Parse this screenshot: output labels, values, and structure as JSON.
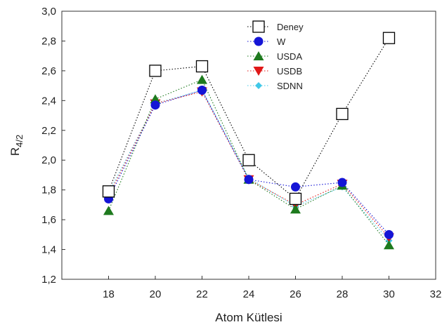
{
  "chart_data": {
    "type": "line",
    "title": "",
    "xlabel": "Atom Kütlesi",
    "ylabel_main": "R",
    "ylabel_sub": "4/2",
    "xlim": [
      16,
      32
    ],
    "ylim": [
      1.2,
      3.0
    ],
    "xticks": [
      18,
      20,
      22,
      24,
      26,
      28,
      30,
      32
    ],
    "yticks": [
      1.2,
      1.4,
      1.6,
      1.8,
      2.0,
      2.2,
      2.4,
      2.6,
      2.8,
      3.0
    ],
    "decimal_separator": ",",
    "grid": false,
    "legend_position": "top-right",
    "x": [
      18,
      20,
      22,
      24,
      26,
      28,
      30
    ],
    "series": [
      {
        "name": "Deney",
        "marker": "square-open",
        "color": "#000000",
        "values": [
          1.79,
          2.6,
          2.63,
          2.0,
          1.74,
          2.31,
          2.82
        ]
      },
      {
        "name": "W",
        "marker": "circle",
        "color": "#1515d6",
        "values": [
          1.74,
          2.37,
          2.47,
          1.87,
          1.82,
          1.85,
          1.5
        ]
      },
      {
        "name": "USDA",
        "marker": "triangle-up",
        "color": "#1e7a1e",
        "values": [
          1.66,
          2.41,
          2.54,
          1.87,
          1.67,
          1.83,
          1.43
        ]
      },
      {
        "name": "USDB",
        "marker": "triangle-down",
        "color": "#e01818",
        "values": [
          1.76,
          2.38,
          2.46,
          1.87,
          1.7,
          1.84,
          1.48
        ]
      },
      {
        "name": "SDNN",
        "marker": "diamond",
        "color": "#40c8e8",
        "values": [
          1.78,
          2.38,
          2.47,
          1.88,
          1.69,
          1.82,
          1.46
        ]
      }
    ]
  }
}
